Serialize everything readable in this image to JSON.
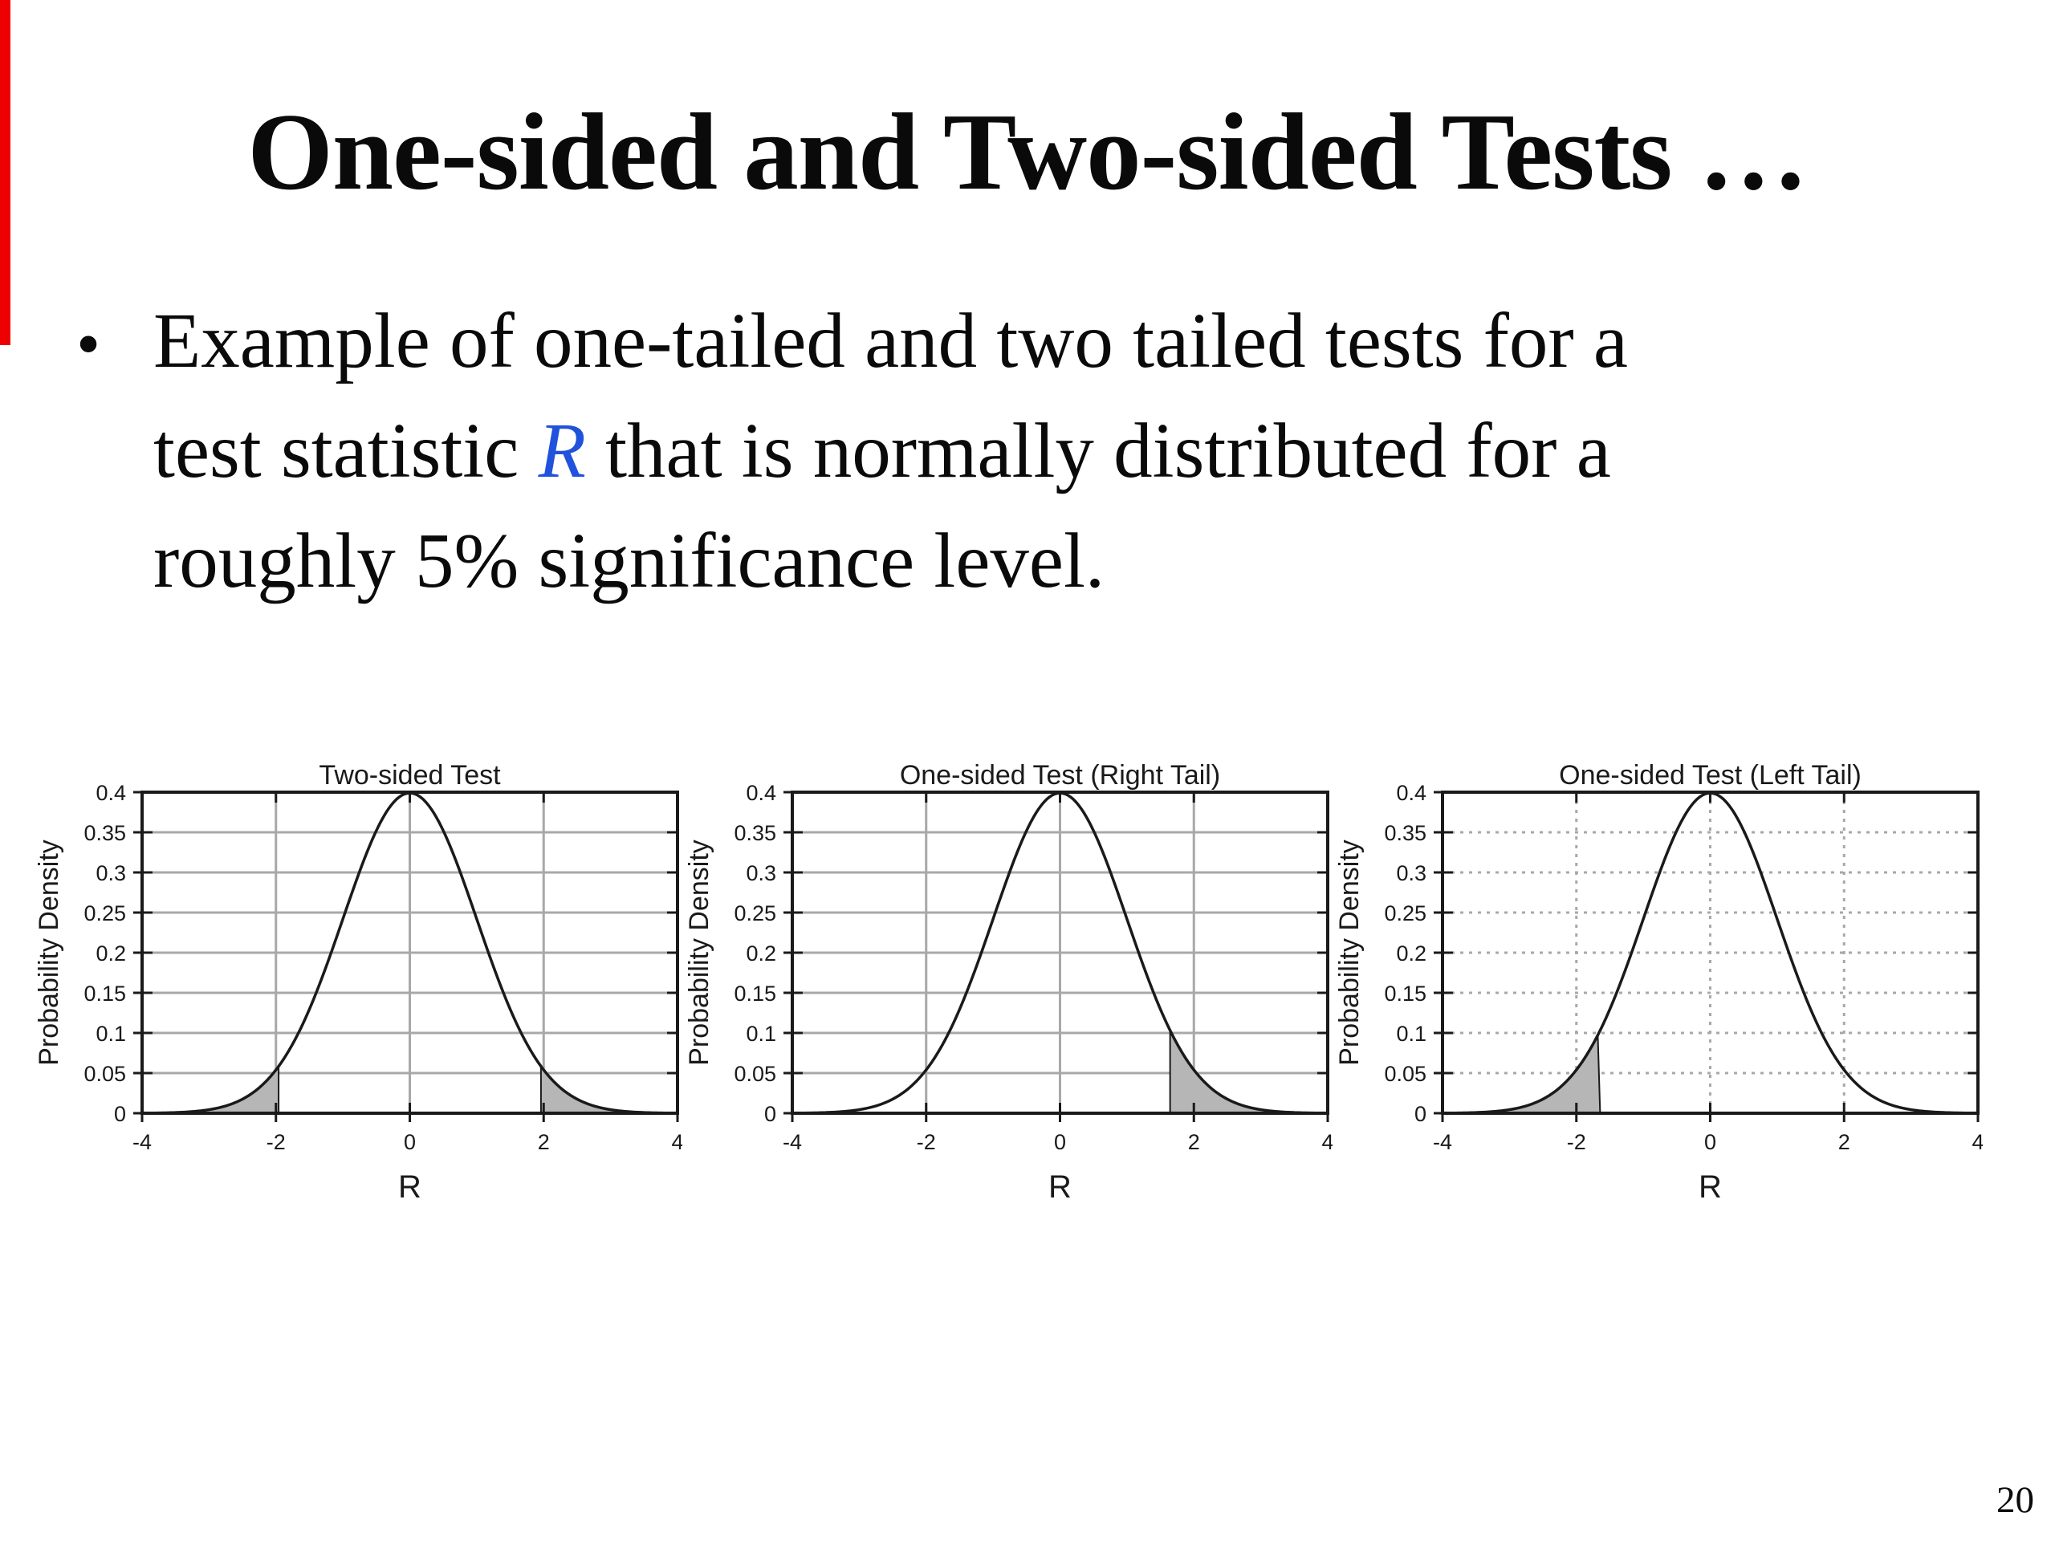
{
  "slide": {
    "title": "One-sided and Two-sided Tests …",
    "bullet": {
      "marker": "•",
      "line1": "Example of one-tailed and two tailed tests for a",
      "line2_pre": "test statistic ",
      "line2_R": "R",
      "line2_post": " that is normally distributed for a",
      "line3": "roughly 5% significance level."
    },
    "page_number": "20",
    "accent_blue": "#2052dc",
    "red_bar_color": "#ee0000"
  },
  "chart_data": [
    {
      "type": "area",
      "title": "Two-sided Test",
      "xlabel": "R",
      "ylabel": "Probability Density",
      "xlim": [
        -4,
        4
      ],
      "ylim": [
        0,
        0.4
      ],
      "xticks": [
        "-4",
        "-2",
        "0",
        "2",
        "4"
      ],
      "yticks": [
        "0",
        "0.05",
        "0.1",
        "0.15",
        "0.2",
        "0.25",
        "0.3",
        "0.35",
        "0.4"
      ],
      "grid_vertical_at": [
        -2,
        0,
        2
      ],
      "gridline_style": "solid",
      "grid_on": true,
      "legend": "none",
      "curve": {
        "distribution": "standard_normal",
        "mean": 0,
        "sd": 1,
        "peak_density": 0.3989
      },
      "critical_values": [
        -1.96,
        1.96
      ],
      "shaded_regions": [
        {
          "from": -4,
          "to": -1.96
        },
        {
          "from": 1.96,
          "to": 4
        }
      ],
      "shade_color": "#b6b6b6",
      "tail": "both",
      "significance": "roughly 5% total (2.5% per tail)"
    },
    {
      "type": "area",
      "title": "One-sided Test (Right Tail)",
      "xlabel": "R",
      "ylabel": "Probability Density",
      "xlim": [
        -4,
        4
      ],
      "ylim": [
        0,
        0.4
      ],
      "xticks": [
        "-4",
        "-2",
        "0",
        "2",
        "4"
      ],
      "yticks": [
        "0",
        "0.05",
        "0.1",
        "0.15",
        "0.2",
        "0.25",
        "0.3",
        "0.35",
        "0.4"
      ],
      "grid_vertical_at": [
        -2,
        0,
        2
      ],
      "gridline_style": "solid",
      "grid_on": true,
      "legend": "none",
      "curve": {
        "distribution": "standard_normal",
        "mean": 0,
        "sd": 1,
        "peak_density": 0.3989
      },
      "critical_values": [
        1.645
      ],
      "shaded_regions": [
        {
          "from": 1.645,
          "to": 4
        }
      ],
      "shade_color": "#b6b6b6",
      "tail": "right",
      "significance": "roughly 5% in right tail"
    },
    {
      "type": "area",
      "title": "One-sided Test (Left Tail)",
      "xlabel": "R",
      "ylabel": "Probability Density",
      "xlim": [
        -4,
        4
      ],
      "ylim": [
        0,
        0.4
      ],
      "xticks": [
        "-4",
        "-2",
        "0",
        "2",
        "4"
      ],
      "yticks": [
        "0",
        "0.05",
        "0.1",
        "0.15",
        "0.2",
        "0.25",
        "0.3",
        "0.35",
        "0.4"
      ],
      "grid_vertical_at": [
        -2,
        0,
        2
      ],
      "gridline_style": "dotted",
      "grid_on": true,
      "legend": "none",
      "curve": {
        "distribution": "standard_normal",
        "mean": 0,
        "sd": 1,
        "peak_density": 0.3989
      },
      "critical_values": [
        -1.645
      ],
      "shaded_regions": [
        {
          "from": -4,
          "to": -1.645
        }
      ],
      "shade_color": "#b6b6b6",
      "tail": "left",
      "significance": "roughly 5% in left tail"
    }
  ]
}
